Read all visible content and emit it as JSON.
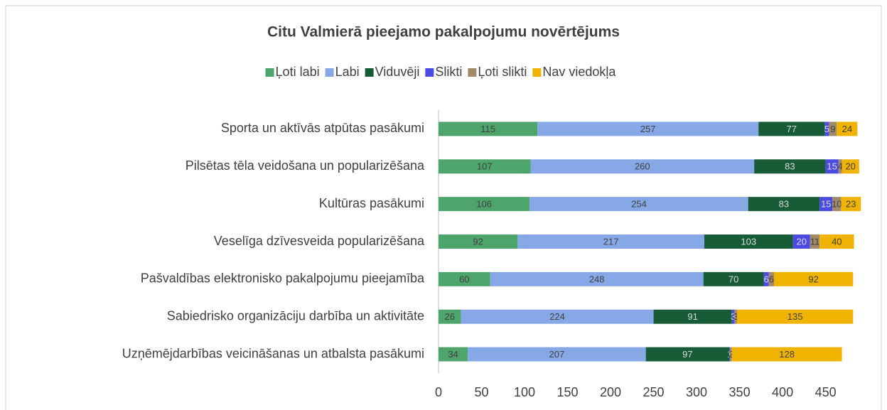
{
  "chart_data": {
    "type": "stacked-hbar",
    "title": "Citu Valmierā pieejamo pakalpojumu novērtējums",
    "legend": "top",
    "grid": false,
    "categories": [
      "Sporta un aktīvās atpūtas pasākumi",
      "Pilsētas tēla veidošana un popularizēšana",
      "Kultūras pasākumi",
      "Veselīga dzīvesveida popularizēšana",
      "Pašvaldības elektronisko pakalpojumu pieejamība",
      "Sabiedrisko organizāciju darbība un aktivitāte",
      "Uzņēmējdarbības veicināšanas un atbalsta pasākumi"
    ],
    "series": [
      {
        "name": "Ļoti labi",
        "color": "#4ea56c",
        "values": [
          115,
          107,
          106,
          92,
          60,
          26,
          34
        ]
      },
      {
        "name": "Labi",
        "color": "#86a8e7",
        "values": [
          257,
          260,
          254,
          217,
          248,
          224,
          207
        ]
      },
      {
        "name": "Viduvēji",
        "color": "#175c36",
        "values": [
          77,
          83,
          83,
          103,
          70,
          91,
          97
        ]
      },
      {
        "name": "Slikti",
        "color": "#4b4be2",
        "values": [
          5,
          15,
          15,
          20,
          6,
          3,
          1
        ]
      },
      {
        "name": "Ļoti slikti",
        "color": "#a08a6a",
        "values": [
          9,
          4,
          10,
          11,
          6,
          3,
          2
        ]
      },
      {
        "name": "Nav viedokļa",
        "color": "#f0b400",
        "values": [
          24,
          20,
          23,
          40,
          92,
          135,
          128
        ]
      }
    ],
    "xlim": [
      0,
      490
    ],
    "xticks": [
      0,
      50,
      100,
      150,
      200,
      250,
      300,
      350,
      400,
      450
    ]
  }
}
